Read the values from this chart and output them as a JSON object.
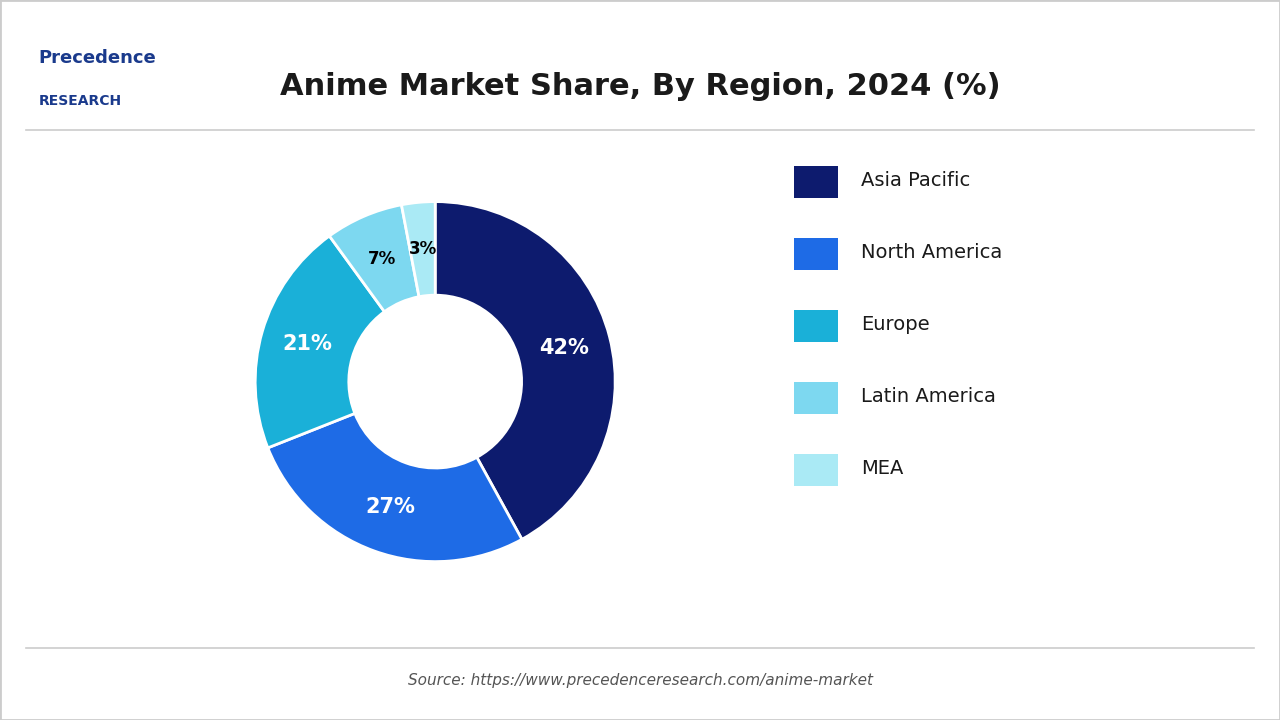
{
  "title": "Anime Market Share, By Region, 2024 (%)",
  "title_fontsize": 22,
  "title_color": "#1a1a1a",
  "labels": [
    "Asia Pacific",
    "North America",
    "Europe",
    "Latin America",
    "MEA"
  ],
  "values": [
    42,
    27,
    21,
    7,
    3
  ],
  "colors": [
    "#0d1b6e",
    "#1e6be6",
    "#1ab0d8",
    "#7dd8f0",
    "#aaeaf5"
  ],
  "pct_labels": [
    "42%",
    "27%",
    "21%",
    "7%",
    "3%"
  ],
  "pct_label_colors": [
    "white",
    "white",
    "white",
    "black",
    "black"
  ],
  "source_text": "Source: https://www.precedenceresearch.com/anime-market",
  "source_fontsize": 11,
  "background_color": "#ffffff",
  "border_color": "#cccccc",
  "logo_text_line1": "Precedence",
  "logo_text_line2": "RESEARCH"
}
